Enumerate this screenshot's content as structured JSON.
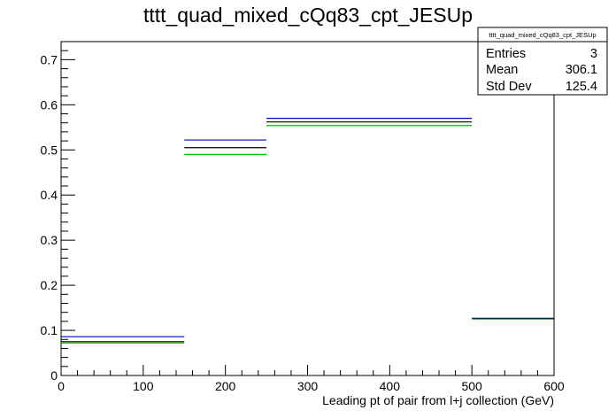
{
  "chart_data": {
    "type": "step",
    "title": "tttt_quad_mixed_cQq83_cpt_JESUp",
    "xlabel": "Leading pt of pair from l+j collection (GeV)",
    "ylabel": "",
    "xlim": [
      0,
      600
    ],
    "ylim": [
      0,
      0.74
    ],
    "x_ticks": [
      0,
      100,
      200,
      300,
      400,
      500,
      600
    ],
    "y_ticks": [
      0,
      0.1,
      0.2,
      0.3,
      0.4,
      0.5,
      0.6,
      0.7
    ],
    "bin_edges": [
      0,
      150,
      250,
      500,
      600
    ],
    "series": [
      {
        "color": "#0000cc",
        "values": [
          0.086,
          0.522,
          0.57,
          0.127
        ]
      },
      {
        "color": "#000000",
        "values": [
          0.075,
          0.505,
          0.562,
          0.126
        ]
      },
      {
        "color": "#00bb00",
        "values": [
          0.072,
          0.49,
          0.554,
          0.125
        ]
      }
    ],
    "legend_position": "top-right",
    "stats": {
      "name": "tttt_quad_mixed_cQq83_cpt_JESUp",
      "rows": [
        {
          "label": "Entries",
          "value": "3"
        },
        {
          "label": "Mean",
          "value": "306.1"
        },
        {
          "label": "Std Dev",
          "value": "125.4"
        }
      ]
    },
    "grid": false
  }
}
